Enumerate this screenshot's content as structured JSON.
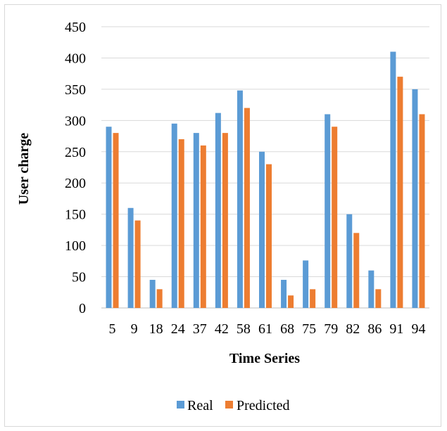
{
  "chart_data": {
    "type": "bar",
    "title": "",
    "xlabel": "Time Series",
    "ylabel": "User charge",
    "categories": [
      "5",
      "9",
      "18",
      "24",
      "37",
      "42",
      "58",
      "61",
      "68",
      "75",
      "79",
      "82",
      "86",
      "91",
      "94"
    ],
    "series": [
      {
        "name": "Real",
        "color": "#5b9bd5",
        "values": [
          290,
          160,
          45,
          295,
          280,
          312,
          348,
          250,
          45,
          76,
          310,
          150,
          60,
          410,
          350
        ]
      },
      {
        "name": "Predicted",
        "color": "#ed7d31",
        "values": [
          280,
          140,
          30,
          270,
          260,
          280,
          320,
          230,
          20,
          30,
          290,
          120,
          30,
          370,
          310
        ]
      }
    ],
    "ylim": [
      0,
      450
    ],
    "yticks": [
      0,
      50,
      100,
      150,
      200,
      250,
      300,
      350,
      400,
      450
    ],
    "grid": true,
    "legend_position": "bottom"
  }
}
